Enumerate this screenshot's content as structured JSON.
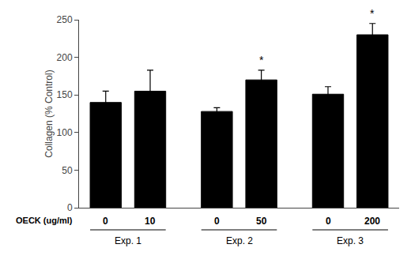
{
  "chart_data": {
    "type": "bar",
    "ylabel": "Collagen (% Control)",
    "xlabel": "OECK (ug/ml)",
    "categories": [
      "0",
      "10",
      "0",
      "50",
      "0",
      "200"
    ],
    "values": [
      140,
      155,
      128,
      170,
      151,
      230
    ],
    "errors": [
      15,
      28,
      5,
      13,
      10,
      15
    ],
    "color": "#000000",
    "group_labels": [
      "Exp. 1",
      "Exp. 2",
      "Exp. 3"
    ],
    "annotations": [
      {
        "text": "*",
        "category": 3
      },
      {
        "text": "*",
        "category": 5
      }
    ],
    "ylim": [
      0,
      250
    ],
    "yticks": [
      0,
      50,
      100,
      150,
      200,
      250
    ],
    "grid": false
  }
}
